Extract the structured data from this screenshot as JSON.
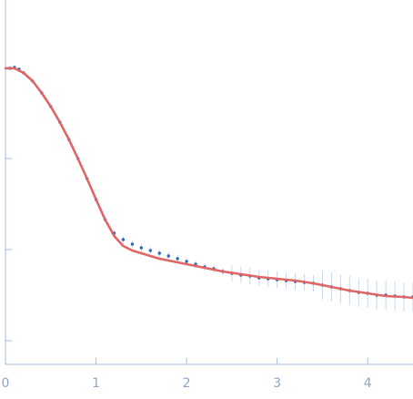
{
  "chart_data": {
    "type": "scatter",
    "title": "",
    "xlabel": "",
    "ylabel": "",
    "xlim": [
      0,
      4.5
    ],
    "ylim_log": [
      -3.0,
      0.0
    ],
    "y_scale": "log",
    "grid": false,
    "legend": "none",
    "x_ticks": [
      "0",
      "1",
      "2",
      "3",
      "4"
    ],
    "y_tick_count": 4,
    "colors": {
      "points": "#3465b4",
      "error_bars": "#9fb7d8",
      "fit": "#e06565",
      "axis": "#a9bdd6",
      "tick_text": "#8aa6c8"
    },
    "series": [
      {
        "kind": "points_with_error_bars",
        "x": [
          0.05,
          0.1,
          0.15,
          0.2,
          0.3,
          0.4,
          0.5,
          0.6,
          0.7,
          0.8,
          0.9,
          1.0,
          1.1,
          1.2,
          1.3,
          1.4,
          1.5,
          1.6,
          1.7,
          1.8,
          1.9,
          2.0,
          2.1,
          2.2,
          2.3,
          2.4,
          2.5,
          2.6,
          2.7,
          2.8,
          2.9,
          3.0,
          3.1,
          3.2,
          3.3,
          3.4,
          3.5,
          3.6,
          3.7,
          3.8,
          3.9,
          4.0,
          4.1,
          4.2,
          4.3,
          4.4,
          4.5
        ],
        "log_i": [
          -0.01,
          -0.0,
          -0.02,
          -0.06,
          -0.15,
          -0.28,
          -0.43,
          -0.6,
          -0.79,
          -1.0,
          -1.22,
          -1.45,
          -1.67,
          -1.82,
          -1.89,
          -1.94,
          -1.98,
          -2.01,
          -2.04,
          -2.07,
          -2.1,
          -2.13,
          -2.16,
          -2.19,
          -2.21,
          -2.24,
          -2.26,
          -2.28,
          -2.29,
          -2.31,
          -2.32,
          -2.33,
          -2.34,
          -2.35,
          -2.36,
          -2.37,
          -2.39,
          -2.41,
          -2.43,
          -2.45,
          -2.47,
          -2.48,
          -2.5,
          -2.5,
          -2.51,
          -2.52,
          -2.52
        ]
      },
      {
        "kind": "fit_line",
        "x": [
          0.0,
          0.1,
          0.2,
          0.3,
          0.4,
          0.5,
          0.6,
          0.7,
          0.8,
          0.9,
          1.0,
          1.1,
          1.2,
          1.3,
          1.4,
          1.5,
          1.6,
          1.7,
          1.8,
          1.9,
          2.0,
          2.2,
          2.4,
          2.6,
          2.8,
          3.0,
          3.2,
          3.4,
          3.6,
          3.8,
          4.0,
          4.2,
          4.4,
          4.5
        ],
        "log_i": [
          -0.01,
          -0.01,
          -0.06,
          -0.15,
          -0.28,
          -0.43,
          -0.6,
          -0.79,
          -1.0,
          -1.22,
          -1.45,
          -1.67,
          -1.85,
          -1.96,
          -2.01,
          -2.04,
          -2.07,
          -2.1,
          -2.12,
          -2.14,
          -2.16,
          -2.2,
          -2.24,
          -2.27,
          -2.3,
          -2.32,
          -2.34,
          -2.37,
          -2.41,
          -2.45,
          -2.48,
          -2.51,
          -2.52,
          -2.53
        ]
      }
    ]
  }
}
